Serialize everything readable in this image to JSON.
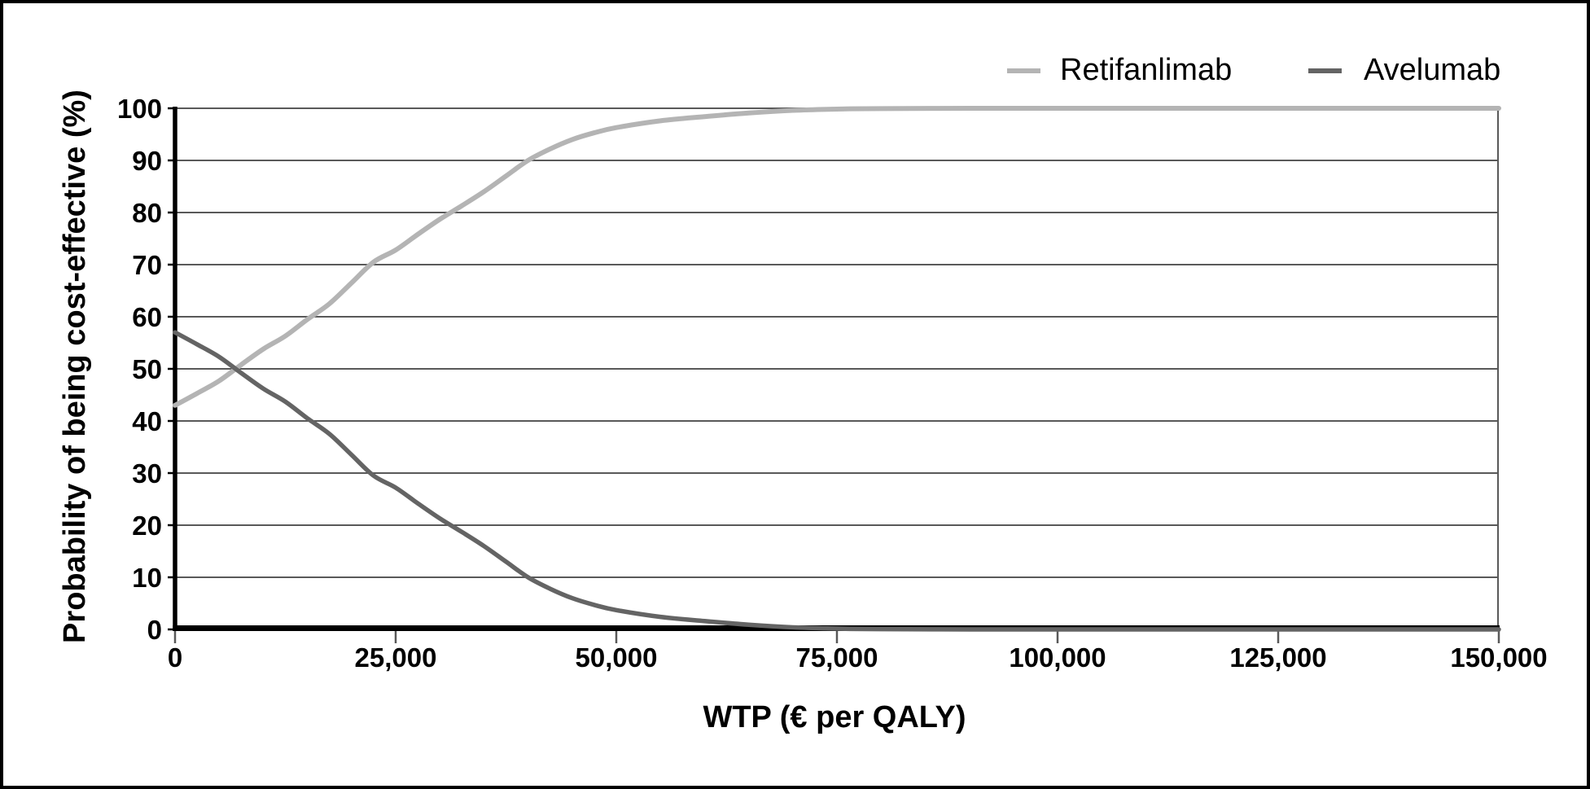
{
  "chart_data": {
    "type": "line",
    "xlabel": "WTP (€ per QALY)",
    "ylabel": "Probability of being cost-effective (%)",
    "xlim": [
      0,
      150000
    ],
    "ylim": [
      0,
      100
    ],
    "x_ticks": [
      0,
      25000,
      50000,
      75000,
      100000,
      125000,
      150000
    ],
    "x_tick_labels": [
      "0",
      "25,000",
      "50,000",
      "75,000",
      "100,000",
      "125,000",
      "150,000"
    ],
    "y_ticks": [
      0,
      10,
      20,
      30,
      40,
      50,
      60,
      70,
      80,
      90,
      100
    ],
    "y_tick_labels": [
      "0",
      "10",
      "20",
      "30",
      "40",
      "50",
      "60",
      "70",
      "80",
      "90",
      "100"
    ],
    "grid": "horizontal",
    "legend_position": "top-right",
    "gridline_color": "#595959",
    "axis_color": "#000000",
    "series": [
      {
        "name": "Retifanlimab",
        "color": "#b4b4b4",
        "points": [
          [
            0,
            43
          ],
          [
            2500,
            45.3
          ],
          [
            5000,
            47.7
          ],
          [
            7500,
            50.8
          ],
          [
            10000,
            53.8
          ],
          [
            12500,
            56.3
          ],
          [
            15000,
            59.5
          ],
          [
            17500,
            62.5
          ],
          [
            20000,
            66.5
          ],
          [
            22500,
            70.5
          ],
          [
            25000,
            72.8
          ],
          [
            27500,
            75.8
          ],
          [
            30000,
            78.7
          ],
          [
            32500,
            81.3
          ],
          [
            35000,
            84
          ],
          [
            37500,
            87
          ],
          [
            40000,
            90
          ],
          [
            42500,
            92.2
          ],
          [
            45000,
            94
          ],
          [
            47500,
            95.3
          ],
          [
            50000,
            96.3
          ],
          [
            55000,
            97.6
          ],
          [
            60000,
            98.4
          ],
          [
            65000,
            99.1
          ],
          [
            70000,
            99.6
          ],
          [
            75000,
            99.85
          ],
          [
            80000,
            99.95
          ],
          [
            90000,
            100
          ],
          [
            100000,
            100
          ],
          [
            125000,
            100
          ],
          [
            150000,
            100
          ]
        ]
      },
      {
        "name": "Avelumab",
        "color": "#646464",
        "points": [
          [
            0,
            57
          ],
          [
            2500,
            54.7
          ],
          [
            5000,
            52.3
          ],
          [
            7500,
            49.2
          ],
          [
            10000,
            46.2
          ],
          [
            12500,
            43.7
          ],
          [
            15000,
            40.5
          ],
          [
            17500,
            37.5
          ],
          [
            20000,
            33.5
          ],
          [
            22500,
            29.5
          ],
          [
            25000,
            27.2
          ],
          [
            27500,
            24.2
          ],
          [
            30000,
            21.3
          ],
          [
            32500,
            18.7
          ],
          [
            35000,
            16
          ],
          [
            37500,
            13
          ],
          [
            40000,
            10
          ],
          [
            42500,
            7.8
          ],
          [
            45000,
            6
          ],
          [
            47500,
            4.7
          ],
          [
            50000,
            3.7
          ],
          [
            55000,
            2.4
          ],
          [
            60000,
            1.6
          ],
          [
            65000,
            0.9
          ],
          [
            70000,
            0.4
          ],
          [
            75000,
            0.15
          ],
          [
            80000,
            0.05
          ],
          [
            90000,
            0
          ],
          [
            100000,
            0
          ],
          [
            125000,
            0
          ],
          [
            150000,
            0
          ]
        ]
      }
    ]
  }
}
